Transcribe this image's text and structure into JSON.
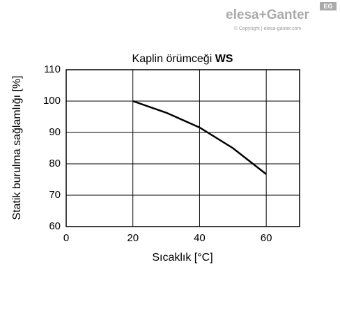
{
  "chart_data": {
    "type": "line",
    "title": "Kaplin örümceği",
    "title_emphasis": "WS",
    "x_label": "Sıcaklık [°C]",
    "y_label": "Statik burulma sağlamlığı [%]",
    "x": [
      20,
      30,
      40,
      50,
      60
    ],
    "series": [
      {
        "color": "#000000",
        "values": [
          100,
          96.3,
          91.6,
          85,
          76.7
        ]
      }
    ],
    "xlim": [
      0,
      70
    ],
    "xticks": [
      0,
      20,
      40,
      60
    ],
    "ylim": [
      60,
      110
    ],
    "yticks": [
      60,
      70,
      80,
      90,
      100,
      110
    ],
    "grid": true
  },
  "logo": {
    "brand": "elesa+Ganter",
    "copyright": "© Copyright | elesa-ganter.com",
    "badge": "EG"
  }
}
